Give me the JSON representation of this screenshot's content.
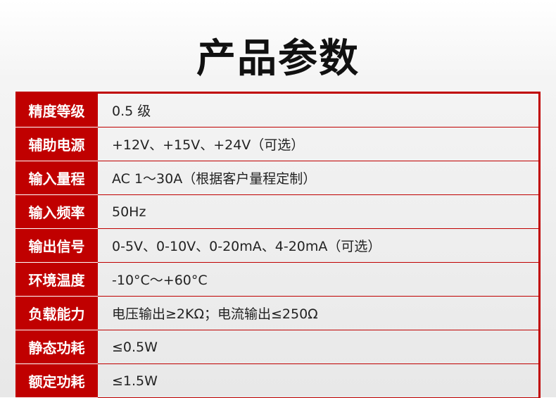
{
  "title": "产品参数",
  "colors": {
    "accent": "#c00000"
  },
  "rows": [
    {
      "label": "精度等级",
      "value": "0.5 级"
    },
    {
      "label": "辅助电源",
      "value": "+12V、+15V、+24V（可选）"
    },
    {
      "label": "输入量程",
      "value": "AC 1～30A（根据客户量程定制）"
    },
    {
      "label": "输入频率",
      "value": "50Hz"
    },
    {
      "label": "输出信号",
      "value": "0-5V、0-10V、0-20mA、4-20mA（可选）"
    },
    {
      "label": "环境温度",
      "value": "-10°C～+60°C"
    },
    {
      "label": "负载能力",
      "value": "电压输出≥2KΩ；电流输出≤250Ω"
    },
    {
      "label": "静态功耗",
      "value": "≤0.5W"
    },
    {
      "label": "额定功耗",
      "value": "≤1.5W"
    }
  ]
}
